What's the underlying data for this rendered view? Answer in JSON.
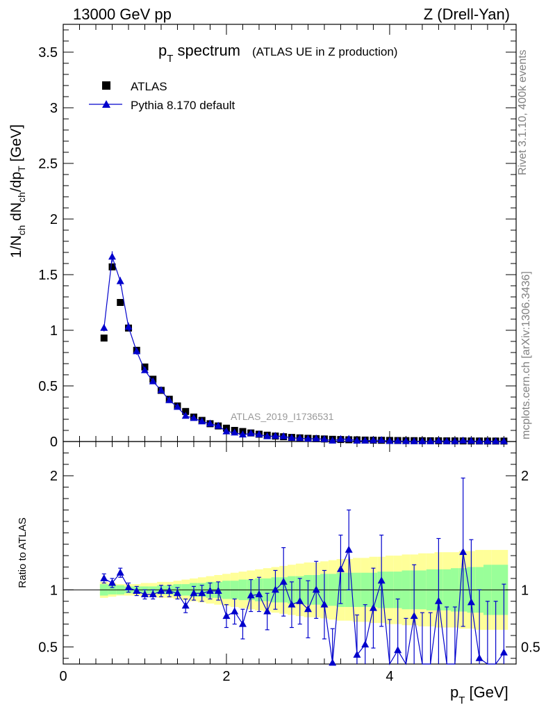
{
  "header": {
    "energy": "13000 GeV pp",
    "process": "Z (Drell-Yan)"
  },
  "side": {
    "rivet": "Rivet 3.1.10,  400k events",
    "mcplots": "mcplots.cern.ch [arXiv:1306.3436]"
  },
  "chart_data": {
    "type": "scatter",
    "title_main": "p",
    "title_sub": "T",
    "title_rest": " spectrum",
    "title_note": "(ATLAS UE in Z production)",
    "analysis": "ATLAS_2019_I1736531",
    "xlabel_main": "p",
    "xlabel_sub": "T",
    "xlabel_rest": " [GeV]",
    "ylabel": "1/N_ch dN_ch/dp_T [GeV]",
    "ylabel_parts": [
      "1/N",
      "ch",
      " dN",
      "ch",
      "/dp",
      "T",
      " [GeV]"
    ],
    "ratio_ylabel": "Ratio to ATLAS",
    "xlim": [
      0,
      5.55
    ],
    "ylim": [
      0,
      3.75
    ],
    "ratio_ylim": [
      0.35,
      2.3
    ],
    "x_ticks": [
      "0",
      "2",
      "4"
    ],
    "y_ticks": [
      "0",
      "0.5",
      "1",
      "1.5",
      "2",
      "2.5",
      "3",
      "3.5"
    ],
    "ratio_ticks": [
      "0.5",
      "1",
      "2"
    ],
    "legend": [
      {
        "name": "ATLAS",
        "marker": "square",
        "color": "#000000"
      },
      {
        "name": "Pythia 8.170 default",
        "marker": "triangle",
        "color": "#0000cc"
      }
    ],
    "x": [
      0.5,
      0.6,
      0.7,
      0.8,
      0.9,
      1.0,
      1.1,
      1.2,
      1.3,
      1.4,
      1.5,
      1.6,
      1.7,
      1.8,
      1.9,
      2.0,
      2.1,
      2.2,
      2.3,
      2.4,
      2.5,
      2.6,
      2.7,
      2.8,
      2.9,
      3.0,
      3.1,
      3.2,
      3.3,
      3.4,
      3.5,
      3.6,
      3.7,
      3.8,
      3.9,
      4.0,
      4.1,
      4.2,
      4.3,
      4.4,
      4.5,
      4.6,
      4.7,
      4.8,
      4.9,
      5.0,
      5.1,
      5.2,
      5.3,
      5.4
    ],
    "series": [
      {
        "name": "ATLAS",
        "values": [
          0.93,
          1.57,
          1.25,
          1.02,
          0.82,
          0.67,
          0.56,
          0.46,
          0.38,
          0.32,
          0.27,
          0.22,
          0.19,
          0.16,
          0.14,
          0.12,
          0.1,
          0.09,
          0.077,
          0.066,
          0.057,
          0.049,
          0.043,
          0.037,
          0.033,
          0.029,
          0.026,
          0.023,
          0.02,
          0.018,
          0.016,
          0.015,
          0.013,
          0.012,
          0.011,
          0.01,
          0.009,
          0.0085,
          0.008,
          0.0075,
          0.007,
          0.0065,
          0.006,
          0.0057,
          0.0054,
          0.0051,
          0.0048,
          0.0046,
          0.0044,
          0.0042
        ]
      },
      {
        "name": "Pythia 8.170 default",
        "values": [
          1.02,
          1.66,
          1.44,
          1.03,
          0.81,
          0.64,
          0.54,
          0.46,
          0.37,
          0.31,
          0.23,
          0.21,
          0.18,
          0.16,
          0.14,
          0.09,
          0.08,
          0.062,
          0.073,
          0.063,
          0.046,
          0.049,
          0.046,
          0.032,
          0.03,
          0.024,
          0.026,
          0.02,
          0.007,
          0.021,
          0.022,
          0.006,
          0.007,
          0.01,
          0.012,
          0.0035,
          0.0043,
          0.0025,
          0.0017,
          0.0014,
          0.0008,
          0.0059,
          0.0017,
          0.0014,
          0.0072,
          0.0046,
          0.0019,
          0.0024,
          0.0017,
          0.0019
        ],
        "errors": [
          0.03,
          0.05,
          0.04,
          0.04,
          0.03,
          0.02,
          0.02,
          0.02,
          0.015,
          0.012,
          0.01,
          0.01,
          0.008,
          0.007,
          0.006,
          0.005,
          0.005,
          0.004,
          0.004,
          0.004,
          0.003,
          0.003,
          0.003,
          0.002,
          0.002,
          0.002,
          0.002,
          0.002,
          0.001,
          0.002,
          0.002,
          0.001,
          0.001,
          0.001,
          0.001,
          0.001,
          0.001,
          0.001,
          0.001,
          0.001,
          0.001,
          0.001,
          0.001,
          0.001,
          0.001,
          0.001,
          0.001,
          0.001,
          0.001,
          0.001
        ]
      }
    ],
    "ratio": {
      "values": [
        1.1,
        1.06,
        1.15,
        1.02,
        0.99,
        0.96,
        0.96,
        0.99,
        0.99,
        0.97,
        0.86,
        0.97,
        0.97,
        0.99,
        0.99,
        0.77,
        0.81,
        0.7,
        0.95,
        0.96,
        0.81,
        1.0,
        1.07,
        0.87,
        0.9,
        0.83,
        1.0,
        0.87,
        0.36,
        1.18,
        1.35,
        0.43,
        0.52,
        0.84,
        1.08,
        0.34,
        0.47,
        0.3,
        0.77,
        0.3,
        0.3,
        0.9,
        0.3,
        0.3,
        1.33,
        0.89,
        0.4,
        0.3,
        0.3,
        0.45
      ],
      "errors": [
        0.04,
        0.04,
        0.04,
        0.04,
        0.04,
        0.04,
        0.04,
        0.05,
        0.05,
        0.05,
        0.06,
        0.06,
        0.07,
        0.07,
        0.08,
        0.1,
        0.11,
        0.13,
        0.14,
        0.15,
        0.16,
        0.17,
        0.3,
        0.2,
        0.2,
        0.25,
        0.25,
        0.3,
        0.3,
        0.3,
        0.35,
        0.35,
        0.35,
        0.35,
        0.4,
        0.4,
        0.45,
        0.45,
        0.45,
        0.5,
        0.5,
        0.55,
        0.55,
        0.55,
        0.65,
        0.55,
        0.6,
        0.6,
        0.6,
        0.6
      ],
      "band_green": [
        0.05,
        0.04,
        0.04,
        0.03,
        0.03,
        0.03,
        0.03,
        0.04,
        0.04,
        0.05,
        0.05,
        0.06,
        0.06,
        0.07,
        0.07,
        0.08,
        0.08,
        0.09,
        0.09,
        0.1,
        0.1,
        0.11,
        0.11,
        0.12,
        0.12,
        0.13,
        0.13,
        0.14,
        0.14,
        0.15,
        0.15,
        0.15,
        0.15,
        0.15,
        0.16,
        0.16,
        0.16,
        0.17,
        0.17,
        0.17,
        0.18,
        0.18,
        0.18,
        0.19,
        0.19,
        0.2,
        0.2,
        0.22,
        0.22,
        0.22
      ],
      "band_yellow": [
        0.07,
        0.06,
        0.05,
        0.05,
        0.05,
        0.06,
        0.06,
        0.07,
        0.07,
        0.08,
        0.09,
        0.1,
        0.11,
        0.12,
        0.13,
        0.14,
        0.15,
        0.16,
        0.17,
        0.18,
        0.19,
        0.2,
        0.21,
        0.22,
        0.23,
        0.24,
        0.24,
        0.25,
        0.26,
        0.27,
        0.27,
        0.28,
        0.28,
        0.29,
        0.29,
        0.3,
        0.3,
        0.31,
        0.31,
        0.32,
        0.32,
        0.33,
        0.33,
        0.33,
        0.34,
        0.34,
        0.35,
        0.35,
        0.35,
        0.35
      ]
    },
    "colors": {
      "data": "#000000",
      "mc": "#0000cc",
      "band_green": "#99ff99",
      "band_yellow": "#ffff99",
      "watermark": "#999999"
    }
  }
}
